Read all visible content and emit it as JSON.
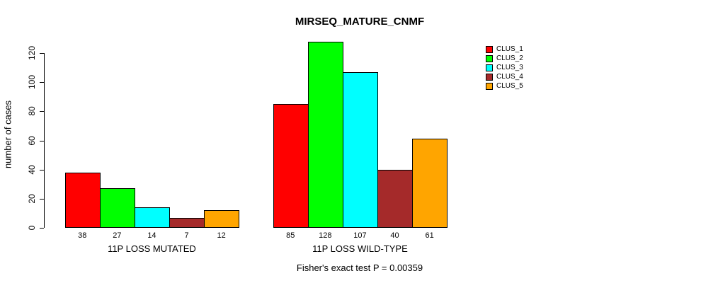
{
  "title": "MIRSEQ_MATURE_CNMF",
  "ylabel": "number of cases",
  "caption": "Fisher's exact test P = 0.00359",
  "legend": {
    "position": "right",
    "items": [
      {
        "label": "CLUS_1",
        "color": "#FF0000"
      },
      {
        "label": "CLUS_2",
        "color": "#00FF00"
      },
      {
        "label": "CLUS_3",
        "color": "#00FFFF"
      },
      {
        "label": "CLUS_4",
        "color": "#A52A2A"
      },
      {
        "label": "CLUS_5",
        "color": "#FFA500"
      }
    ]
  },
  "chart_data": {
    "type": "bar",
    "grouped": true,
    "categories": [
      "11P LOSS MUTATED",
      "11P LOSS WILD-TYPE"
    ],
    "series": [
      {
        "name": "CLUS_1",
        "color": "#FF0000",
        "values": [
          38,
          85
        ]
      },
      {
        "name": "CLUS_2",
        "color": "#00FF00",
        "values": [
          27,
          128
        ]
      },
      {
        "name": "CLUS_3",
        "color": "#00FFFF",
        "values": [
          14,
          107
        ]
      },
      {
        "name": "CLUS_4",
        "color": "#A52A2A",
        "values": [
          7,
          40
        ]
      },
      {
        "name": "CLUS_5",
        "color": "#FFA500",
        "values": [
          12,
          61
        ]
      }
    ],
    "bar_value_labels_shown": true,
    "title": "MIRSEQ_MATURE_CNMF",
    "xlabel": "",
    "ylabel": "number of cases",
    "yticks": [
      0,
      20,
      40,
      60,
      80,
      100,
      120
    ],
    "ylim": [
      0,
      130
    ],
    "grid": false,
    "legend_position": "right"
  }
}
